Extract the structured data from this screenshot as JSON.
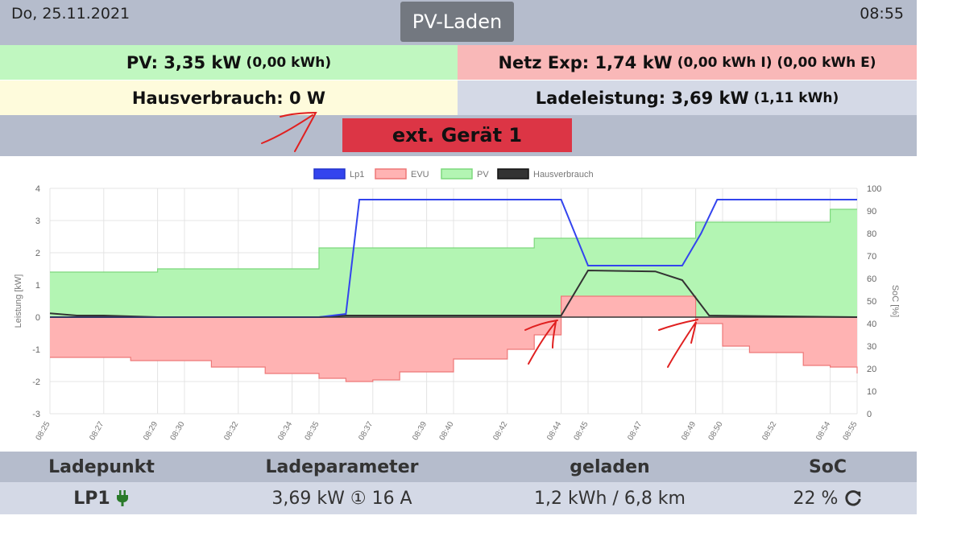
{
  "header": {
    "date": "Do, 25.11.2021",
    "mode": "PV-Laden",
    "time": "08:55"
  },
  "info": {
    "pv_label": "PV: 3,35 kW",
    "pv_sub": "(0,00 kWh)",
    "netz_label": "Netz Exp: 1,74 kW",
    "netz_sub": "(0,00 kWh I) (0,00 kWh E)",
    "haus_label": "Hausverbrauch: 0 W",
    "lade_label": "Ladeleistung: 3,69 kW",
    "lade_sub": "(1,11 kWh)"
  },
  "device_button": "ext. Gerät 1",
  "colors": {
    "lp1": "#3344ee",
    "evu": "#ffb3b3",
    "pv": "#b3f5b3",
    "haus": "#333333"
  },
  "chart_data": {
    "type": "area",
    "legend": [
      "Lp1",
      "EVU",
      "PV",
      "Hausverbrauch"
    ],
    "ylabel": "Leistung [kW]",
    "ylabel_right": "SoC [%]",
    "ylim": [
      -3,
      4
    ],
    "ylim_right": [
      0,
      100
    ],
    "yticks": [
      -3,
      -2,
      -1,
      0,
      1,
      2,
      3,
      4
    ],
    "yticks_right": [
      0,
      10,
      20,
      30,
      40,
      50,
      60,
      70,
      80,
      90,
      100
    ],
    "xtick_labels": [
      "08:25",
      "08:27",
      "08:29",
      "08:30",
      "08:32",
      "08:34",
      "08:35",
      "08:37",
      "08:39",
      "08:40",
      "08:42",
      "08:44",
      "08:45",
      "08:47",
      "08:49",
      "08:50",
      "08:52",
      "08:54",
      "08:55"
    ],
    "grid": true,
    "series": [
      {
        "name": "Lp1",
        "x": [
          "08:25",
          "08:35",
          "08:36",
          "08:36.5",
          "08:44",
          "08:45",
          "08:48.5",
          "08:49.2",
          "08:49.8",
          "08:55"
        ],
        "values": [
          0,
          0,
          0.1,
          3.65,
          3.65,
          1.6,
          1.6,
          2.6,
          3.65,
          3.65
        ]
      },
      {
        "name": "EVU",
        "x": [
          "08:25",
          "08:28",
          "08:31",
          "08:33",
          "08:35",
          "08:36",
          "08:37",
          "08:38",
          "08:40",
          "08:42",
          "08:43",
          "08:44",
          "08:45",
          "08:48",
          "08:49",
          "08:50",
          "08:51",
          "08:53",
          "08:54",
          "08:55"
        ],
        "values": [
          -1.25,
          -1.35,
          -1.55,
          -1.75,
          -1.9,
          -2.0,
          -1.95,
          -1.7,
          -1.3,
          -1.0,
          -0.55,
          0.65,
          0.65,
          0.65,
          -0.2,
          -0.9,
          -1.1,
          -1.5,
          -1.55,
          -1.75
        ]
      },
      {
        "name": "PV",
        "x": [
          "08:25",
          "08:29",
          "08:35",
          "08:43",
          "08:47",
          "08:49",
          "08:51",
          "08:54",
          "08:55"
        ],
        "values": [
          1.4,
          1.5,
          2.15,
          2.45,
          2.45,
          2.95,
          2.95,
          3.35,
          3.35
        ]
      },
      {
        "name": "Hausverbrauch",
        "x": [
          "08:25",
          "08:26",
          "08:27",
          "08:29",
          "08:35",
          "08:36",
          "08:44",
          "08:45",
          "08:47.5",
          "08:48.5",
          "08:49.5",
          "08:55"
        ],
        "values": [
          0.12,
          0.05,
          0.05,
          0,
          0,
          0.05,
          0.05,
          1.45,
          1.42,
          1.15,
          0.05,
          0
        ]
      }
    ]
  },
  "table": {
    "headers": [
      "Ladepunkt",
      "Ladeparameter",
      "geladen",
      "SoC"
    ],
    "row": {
      "lp": "LP1",
      "params": "3,69 kW ① 16 A",
      "charged": "1,2 kWh / 6,8 km",
      "soc": "22 %"
    }
  }
}
